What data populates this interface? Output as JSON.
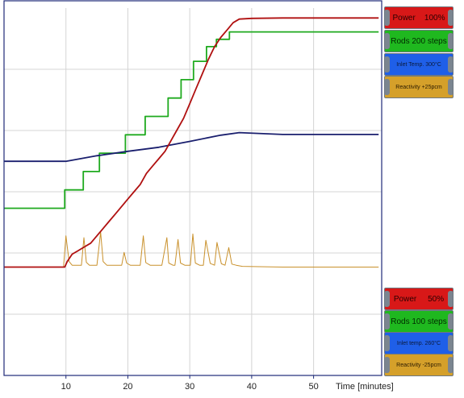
{
  "chart_data": {
    "type": "line",
    "xlabel": "Time [minutes]",
    "x_ticks": [
      10,
      20,
      30,
      40,
      50
    ],
    "xlim": [
      0,
      61
    ],
    "ylim": [
      0,
      100
    ],
    "grid": true,
    "series": [
      {
        "name": "Power",
        "color": "#b01010",
        "x": [
          0,
          9.8,
          10.2,
          11,
          12,
          13,
          14,
          15,
          16,
          17,
          18,
          19,
          20,
          21,
          22,
          23,
          24,
          25,
          26,
          27,
          28,
          29,
          30,
          31,
          32,
          33,
          34,
          35,
          36,
          37,
          38,
          40,
          45,
          50,
          55,
          60.5
        ],
        "y": [
          29.5,
          29.5,
          31,
          33,
          34,
          35,
          36,
          38,
          40,
          42,
          44,
          46,
          48,
          50,
          52,
          55,
          57,
          59,
          61,
          64,
          67,
          70,
          74,
          78,
          82,
          86,
          89.5,
          92,
          94,
          96,
          97,
          97.2,
          97.3,
          97.3,
          97.3,
          97.3
        ]
      },
      {
        "name": "Rods",
        "color": "#1faa1f",
        "x": [
          0,
          9.8,
          9.8,
          12.8,
          12.8,
          15.4,
          15.4,
          19.6,
          19.6,
          22.8,
          22.8,
          26.5,
          26.5,
          28.6,
          28.6,
          30.6,
          30.6,
          32.7,
          32.7,
          34.3,
          34.3,
          36.4,
          36.4,
          60.5
        ],
        "y": [
          45.5,
          45.5,
          50.5,
          50.5,
          55.5,
          55.5,
          60.5,
          60.5,
          65.5,
          65.5,
          70.5,
          70.5,
          75.5,
          75.5,
          80.5,
          80.5,
          85.5,
          85.5,
          89.5,
          89.5,
          91.5,
          91.5,
          93.5,
          93.5
        ]
      },
      {
        "name": "Inlet Temp.",
        "color": "#1a1f6e",
        "x": [
          0,
          10,
          15,
          20,
          25,
          30,
          35,
          38,
          45,
          50,
          55,
          60.5
        ],
        "y": [
          58.3,
          58.3,
          59.8,
          61.0,
          62.1,
          63.7,
          65.4,
          66.1,
          65.6,
          65.6,
          65.6,
          65.6
        ]
      },
      {
        "name": "Reactivity",
        "color": "#c9912c",
        "x": [
          0,
          9.6,
          10.0,
          10.5,
          11,
          12.5,
          12.9,
          13.3,
          13.8,
          15,
          15.6,
          16,
          16.6,
          19,
          19.4,
          19.8,
          20.4,
          22,
          22.5,
          22.9,
          23.6,
          25.5,
          26.3,
          26.6,
          27.3,
          27.6,
          28.1,
          28.5,
          29.2,
          30.1,
          30.5,
          30.9,
          31.6,
          32.2,
          32.6,
          33.3,
          34.0,
          34.4,
          35.1,
          35.7,
          36.3,
          36.8,
          37.5,
          38.5,
          45,
          60.5
        ],
        "y": [
          29.5,
          29.5,
          38,
          31,
          30,
          30,
          37.5,
          30.8,
          30,
          30,
          39,
          31,
          30,
          30,
          33.5,
          30.6,
          30,
          30,
          38,
          30.7,
          30,
          30,
          37.5,
          30.6,
          30,
          30,
          37,
          30.6,
          30,
          30,
          38.5,
          30.6,
          30,
          30,
          36.8,
          30.5,
          30,
          36.2,
          30.4,
          30,
          34.8,
          30.3,
          30,
          29.7,
          29.5,
          29.5
        ]
      }
    ]
  },
  "legend_top": {
    "power": "Power    100%",
    "rods": "Rods 200 steps",
    "inlet": "Inlet Temp. 300°C",
    "reactivity": "Reactivity +25pcm"
  },
  "legend_bottom": {
    "power": "Power     50%",
    "rods": "Rods 100 steps",
    "inlet": "Inlet temp. 260°C",
    "reactivity": "Reactivity -25pcm"
  },
  "colors": {
    "frame": "#1e2a78",
    "grid": "#d4d4d4",
    "badge_red": "#d81818",
    "badge_green": "#1fb81f",
    "badge_blue": "#1f5fe8",
    "badge_gold": "#d5a02a"
  }
}
